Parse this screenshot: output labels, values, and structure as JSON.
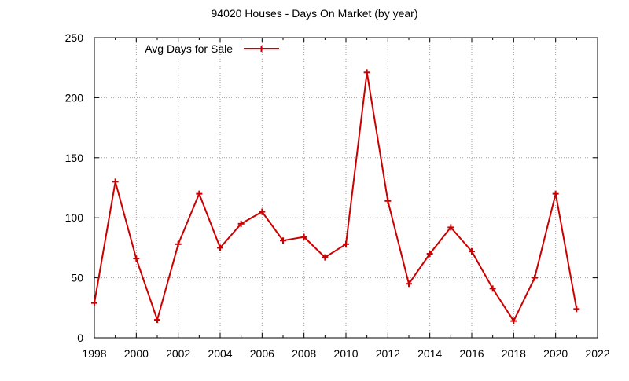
{
  "chart_data": {
    "type": "line",
    "title": "94020 Houses - Days On Market (by year)",
    "xlabel": "",
    "ylabel": "",
    "xlim": [
      1998,
      2022
    ],
    "ylim": [
      0,
      250
    ],
    "x_ticks": [
      "1998",
      "2000",
      "2002",
      "2004",
      "2006",
      "2008",
      "2010",
      "2012",
      "2014",
      "2016",
      "2018",
      "2020",
      "2022"
    ],
    "y_ticks": [
      "0",
      "50",
      "100",
      "150",
      "200",
      "250"
    ],
    "grid": true,
    "legend_position": "top-left",
    "series": [
      {
        "name": "Avg Days for Sale",
        "color": "#cc0000",
        "marker": "plus",
        "x": [
          1998,
          1999,
          2000,
          2001,
          2002,
          2003,
          2004,
          2005,
          2006,
          2007,
          2008,
          2009,
          2010,
          2011,
          2012,
          2013,
          2014,
          2015,
          2016,
          2017,
          2018,
          2019,
          2020,
          2021
        ],
        "values": [
          29,
          130,
          66,
          15,
          78,
          120,
          75,
          95,
          105,
          81,
          84,
          67,
          78,
          221,
          114,
          45,
          70,
          92,
          72,
          41,
          14,
          50,
          120,
          24
        ]
      }
    ]
  }
}
